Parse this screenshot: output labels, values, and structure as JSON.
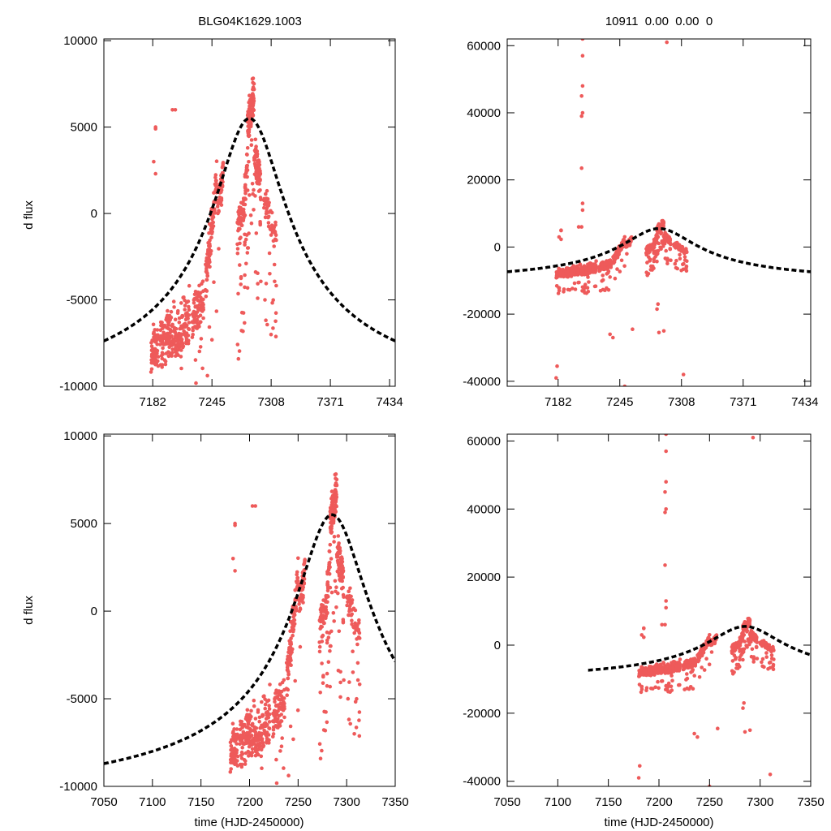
{
  "colors": {
    "points": "#ee5a5a",
    "model": "#000000",
    "frame": "#000000"
  },
  "chart_data": [
    {
      "id": "top-left",
      "type": "scatter",
      "title": "BLG04K1629.1003",
      "xlabel": "",
      "ylabel": "d flux",
      "xlim": [
        7130,
        7440
      ],
      "ylim": [
        -10000,
        10100
      ],
      "xticks": [
        7182,
        7245,
        7308,
        7371,
        7434
      ],
      "yticks": [
        10000,
        5000,
        0,
        -5000,
        -10000
      ],
      "xtick_labels": [
        "7182",
        "7245",
        "7308",
        "7371",
        "7434"
      ],
      "ytick_labels": [
        "10000",
        "5000",
        "0",
        "-5000",
        "-10000"
      ],
      "model": {
        "t0": 7285,
        "peak": 5500,
        "base": -11400,
        "tau": 38
      },
      "points_source": "lightcurve"
    },
    {
      "id": "top-right",
      "type": "scatter",
      "title": "10911  0.00  0.00  0",
      "xlabel": "",
      "ylabel": "",
      "xlim": [
        7130,
        7440
      ],
      "ylim": [
        -41500,
        62000
      ],
      "xticks": [
        7182,
        7245,
        7308,
        7371,
        7434
      ],
      "yticks": [
        60000,
        40000,
        20000,
        0,
        -20000,
        -40000
      ],
      "xtick_labels": [
        "7182",
        "7245",
        "7308",
        "7371",
        "7434"
      ],
      "ytick_labels": [
        "60000",
        "40000",
        "20000",
        "0",
        "-20000",
        "-40000"
      ],
      "model": {
        "t0": 7285,
        "peak": 5500,
        "base": -11400,
        "tau": 38
      },
      "points_source": "lightcurve"
    },
    {
      "id": "bottom-left",
      "type": "scatter",
      "title": "",
      "xlabel": "time (HJD-2450000)",
      "ylabel": "d flux",
      "xlim": [
        7050,
        7350
      ],
      "ylim": [
        -10000,
        10100
      ],
      "xticks": [
        7050,
        7100,
        7150,
        7200,
        7250,
        7300,
        7350
      ],
      "yticks": [
        10000,
        5000,
        0,
        -5000,
        -10000
      ],
      "xtick_labels": [
        "7050",
        "7100",
        "7150",
        "7200",
        "7250",
        "7300",
        "7350"
      ],
      "ytick_labels": [
        "10000",
        "5000",
        "0",
        "-5000",
        "-10000"
      ],
      "model": {
        "t0": 7285,
        "peak": 5500,
        "base": -11400,
        "tau": 38
      },
      "points_source": "lightcurve"
    },
    {
      "id": "bottom-right",
      "type": "scatter",
      "title": "",
      "xlabel": "time (HJD-2450000)",
      "ylabel": "",
      "xlim": [
        7050,
        7350
      ],
      "ylim": [
        -41500,
        62000
      ],
      "xticks": [
        7050,
        7100,
        7150,
        7200,
        7250,
        7300,
        7350
      ],
      "yticks": [
        60000,
        40000,
        20000,
        0,
        -20000,
        -40000
      ],
      "xtick_labels": [
        "7050",
        "7100",
        "7150",
        "7200",
        "7250",
        "7300",
        "7350"
      ],
      "ytick_labels": [
        "60000",
        "40000",
        "20000",
        "0",
        "-20000",
        "-40000"
      ],
      "model": {
        "t0": 7285,
        "peak": 5500,
        "base": -11400,
        "tau": 38
      },
      "model_start": 7130,
      "points_source": "lightcurve"
    }
  ],
  "lightcurve": {
    "segments": [
      {
        "t_start": 7180,
        "t_end": 7188,
        "n": 70,
        "base": -8000,
        "slope": 50,
        "spread": 1800,
        "dips": 0.12
      },
      {
        "t_start": 7190,
        "t_end": 7205,
        "n": 110,
        "base": -7600,
        "slope": 60,
        "spread": 1900,
        "dips": 0.14
      },
      {
        "t_start": 7206,
        "t_end": 7221,
        "n": 110,
        "base": -7200,
        "slope": 80,
        "spread": 1900,
        "dips": 0.15
      },
      {
        "t_start": 7224,
        "t_end": 7236,
        "n": 90,
        "base": -6200,
        "slope": 130,
        "spread": 1600,
        "dips": 0.15
      },
      {
        "t_start": 7238,
        "t_end": 7250,
        "n": 100,
        "base": -4000,
        "slope": 480,
        "spread": 1500,
        "dips": 0.08
      },
      {
        "t_start": 7251,
        "t_end": 7257,
        "n": 55,
        "base": 600,
        "slope": 270,
        "spread": 1300,
        "dips": 0.05
      },
      {
        "t_start": 7272,
        "t_end": 7277,
        "n": 50,
        "base": -900,
        "slope": 150,
        "spread": 1300,
        "dips": 0.25
      },
      {
        "t_start": 7278,
        "t_end": 7283,
        "n": 55,
        "base": -200,
        "slope": 700,
        "spread": 1500,
        "dips": 0.25
      },
      {
        "t_start": 7283,
        "t_end": 7290,
        "n": 120,
        "base": 5200,
        "slope": 250,
        "spread": 1500,
        "dips": 0.12
      },
      {
        "t_start": 7290,
        "t_end": 7297,
        "n": 70,
        "base": 3500,
        "slope": -250,
        "spread": 1400,
        "dips": 0.15
      },
      {
        "t_start": 7300,
        "t_end": 7314,
        "n": 70,
        "base": 1000,
        "slope": -180,
        "spread": 1200,
        "dips": 0.25
      }
    ],
    "outliers": [
      [
        7185,
        4900
      ],
      [
        7185,
        2300
      ],
      [
        7203,
        6000
      ],
      [
        7207,
        62000
      ],
      [
        7207,
        57000
      ],
      [
        7207,
        48000
      ],
      [
        7206,
        45000
      ],
      [
        7207,
        40000
      ],
      [
        7206,
        39000
      ],
      [
        7206,
        23500
      ],
      [
        7207,
        13000
      ],
      [
        7207,
        11000
      ],
      [
        7206,
        6000
      ],
      [
        7185,
        5000
      ],
      [
        7183,
        3000
      ],
      [
        7180,
        -39000
      ],
      [
        7181,
        -35500
      ],
      [
        7250,
        -41500
      ],
      [
        7293,
        61000
      ],
      [
        7310,
        -38000
      ],
      [
        7290,
        -25000
      ],
      [
        7285,
        -25500
      ],
      [
        7235,
        -26000
      ],
      [
        7238,
        -27000
      ],
      [
        7283,
        -18500
      ],
      [
        7284,
        -17000
      ],
      [
        7258,
        -24500
      ]
    ]
  }
}
